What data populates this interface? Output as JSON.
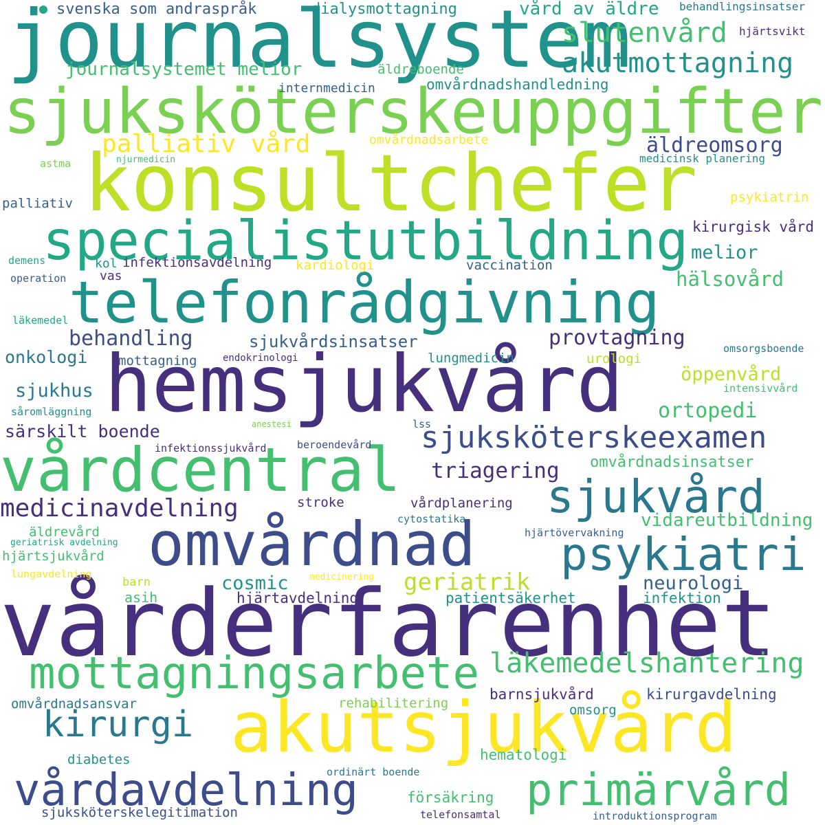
{
  "colors": {
    "purple": "#46307e",
    "indigo": "#3d4c8a",
    "blue": "#355f8d",
    "teal_blue": "#2a788e",
    "teal": "#21918c",
    "green_teal": "#22a884",
    "green": "#44bf70",
    "lime": "#7ad151",
    "yellow_green": "#bddf26",
    "yellow": "#fde725"
  },
  "words": [
    {
      "text": "journalsystem",
      "color": "teal"
    },
    {
      "text": "sjuksköterskeuppgifter",
      "color": "lime"
    },
    {
      "text": "konsultchefer",
      "color": "yellow_green"
    },
    {
      "text": "specialistutbildning",
      "color": "green_teal"
    },
    {
      "text": "telefonrådgivning",
      "color": "teal"
    },
    {
      "text": "hemsjukvård",
      "color": "purple"
    },
    {
      "text": "vårdcentral",
      "color": "green"
    },
    {
      "text": "omvårdnad",
      "color": "indigo"
    },
    {
      "text": "vårderfarenhet",
      "color": "purple"
    },
    {
      "text": "akutsjukvård",
      "color": "yellow"
    },
    {
      "text": "mottagningsarbete",
      "color": "green"
    },
    {
      "text": "vårdavdelning",
      "color": "indigo"
    },
    {
      "text": "primärvård",
      "color": "green"
    },
    {
      "text": "kirurgi",
      "color": "teal_blue"
    },
    {
      "text": "sjukvård",
      "color": "teal_blue"
    },
    {
      "text": "psykiatri",
      "color": "teal_blue"
    },
    {
      "text": "sjuksköterskeexamen",
      "color": "indigo"
    },
    {
      "text": "läkemedelshantering",
      "color": "green"
    },
    {
      "text": "medicinavdelning",
      "color": "purple"
    },
    {
      "text": "slutenvård",
      "color": "green"
    },
    {
      "text": "akutmottagning",
      "color": "teal"
    },
    {
      "text": "palliativ vård",
      "color": "yellow"
    },
    {
      "text": "äldreomsorg",
      "color": "indigo"
    },
    {
      "text": "journalsystemet melior",
      "color": "green"
    },
    {
      "text": "vård av äldre",
      "color": "green_teal"
    },
    {
      "text": "svenska som andraspråk",
      "color": "blue"
    },
    {
      "text": "dialysmottagning",
      "color": "teal"
    },
    {
      "text": "behandlingsinsatser",
      "color": "teal_blue"
    },
    {
      "text": "hjärtsvikt",
      "color": "purple"
    },
    {
      "text": "äldreboende",
      "color": "green"
    },
    {
      "text": "internmedicin",
      "color": "blue"
    },
    {
      "text": "omvårdnadshandledning",
      "color": "teal"
    },
    {
      "text": "omvårdnadsarbete",
      "color": "yellow"
    },
    {
      "text": "medicinsk planering",
      "color": "teal"
    },
    {
      "text": "njurmedicin",
      "color": "green"
    },
    {
      "text": "astma",
      "color": "lime"
    },
    {
      "text": "palliativ",
      "color": "blue"
    },
    {
      "text": "psykiatrin",
      "color": "yellow"
    },
    {
      "text": "kirurgisk vård",
      "color": "purple"
    },
    {
      "text": "melior",
      "color": "teal"
    },
    {
      "text": "hälsovård",
      "color": "green"
    },
    {
      "text": "demens",
      "color": "green_teal"
    },
    {
      "text": "kol",
      "color": "teal"
    },
    {
      "text": "infektionsavdelning",
      "color": "purple"
    },
    {
      "text": "kardiologi",
      "color": "yellow"
    },
    {
      "text": "vaccination",
      "color": "blue"
    },
    {
      "text": "operation",
      "color": "blue"
    },
    {
      "text": "vas",
      "color": "purple"
    },
    {
      "text": "läkemedel",
      "color": "green_teal"
    },
    {
      "text": "behandling",
      "color": "indigo"
    },
    {
      "text": "sjukvårdsinsatser",
      "color": "blue"
    },
    {
      "text": "provtagning",
      "color": "purple"
    },
    {
      "text": "onkologi",
      "color": "teal_blue"
    },
    {
      "text": "mottagning",
      "color": "blue"
    },
    {
      "text": "endokrinologi",
      "color": "purple"
    },
    {
      "text": "lungmedicin",
      "color": "teal"
    },
    {
      "text": "urologi",
      "color": "yellow_green"
    },
    {
      "text": "omsorgsboende",
      "color": "teal_blue"
    },
    {
      "text": "öppenvård",
      "color": "yellow_green"
    },
    {
      "text": "intensivvård",
      "color": "green"
    },
    {
      "text": "sjukhus",
      "color": "teal_blue"
    },
    {
      "text": "ortopedi",
      "color": "green"
    },
    {
      "text": "såromläggning",
      "color": "teal"
    },
    {
      "text": "särskilt boende",
      "color": "purple"
    },
    {
      "text": "anestesi",
      "color": "lime"
    },
    {
      "text": "lss",
      "color": "blue"
    },
    {
      "text": "infektionssjukvård",
      "color": "purple"
    },
    {
      "text": "beroendevård",
      "color": "indigo"
    },
    {
      "text": "omvårdnadsinsatser",
      "color": "green"
    },
    {
      "text": "triagering",
      "color": "purple"
    },
    {
      "text": "stroke",
      "color": "purple"
    },
    {
      "text": "vårdplanering",
      "color": "purple"
    },
    {
      "text": "cytostatika",
      "color": "teal_blue"
    },
    {
      "text": "vidareutbildning",
      "color": "green"
    },
    {
      "text": "äldrevård",
      "color": "green"
    },
    {
      "text": "geriatrisk avdelning",
      "color": "green_teal"
    },
    {
      "text": "hjärtsjukvård",
      "color": "green"
    },
    {
      "text": "hjärtövervakning",
      "color": "blue"
    },
    {
      "text": "lungavdelning",
      "color": "yellow"
    },
    {
      "text": "medicinering",
      "color": "yellow"
    },
    {
      "text": "cosmic",
      "color": "teal"
    },
    {
      "text": "geriatrik",
      "color": "yellow_green"
    },
    {
      "text": "neurologi",
      "color": "blue"
    },
    {
      "text": "barn",
      "color": "yellow_green"
    },
    {
      "text": "asih",
      "color": "green"
    },
    {
      "text": "hjärtavdelning",
      "color": "purple"
    },
    {
      "text": "patientsäkerhet",
      "color": "teal"
    },
    {
      "text": "infektion",
      "color": "teal"
    },
    {
      "text": "omvårdnadsansvar",
      "color": "teal_blue"
    },
    {
      "text": "rehabilitering",
      "color": "lime"
    },
    {
      "text": "barnsjukvård",
      "color": "purple"
    },
    {
      "text": "kirurgavdelning",
      "color": "indigo"
    },
    {
      "text": "omsorg",
      "color": "teal"
    },
    {
      "text": "diabetes",
      "color": "teal"
    },
    {
      "text": "hematologi",
      "color": "green"
    },
    {
      "text": "ordinärt boende",
      "color": "teal_blue"
    },
    {
      "text": "försäkring",
      "color": "green"
    },
    {
      "text": "sjuksköterskelegitimation",
      "color": "indigo"
    },
    {
      "text": "telefonsamtal",
      "color": "purple"
    },
    {
      "text": "introduktionsprogram",
      "color": "blue"
    }
  ],
  "dot": {
    "color": "green_teal"
  }
}
